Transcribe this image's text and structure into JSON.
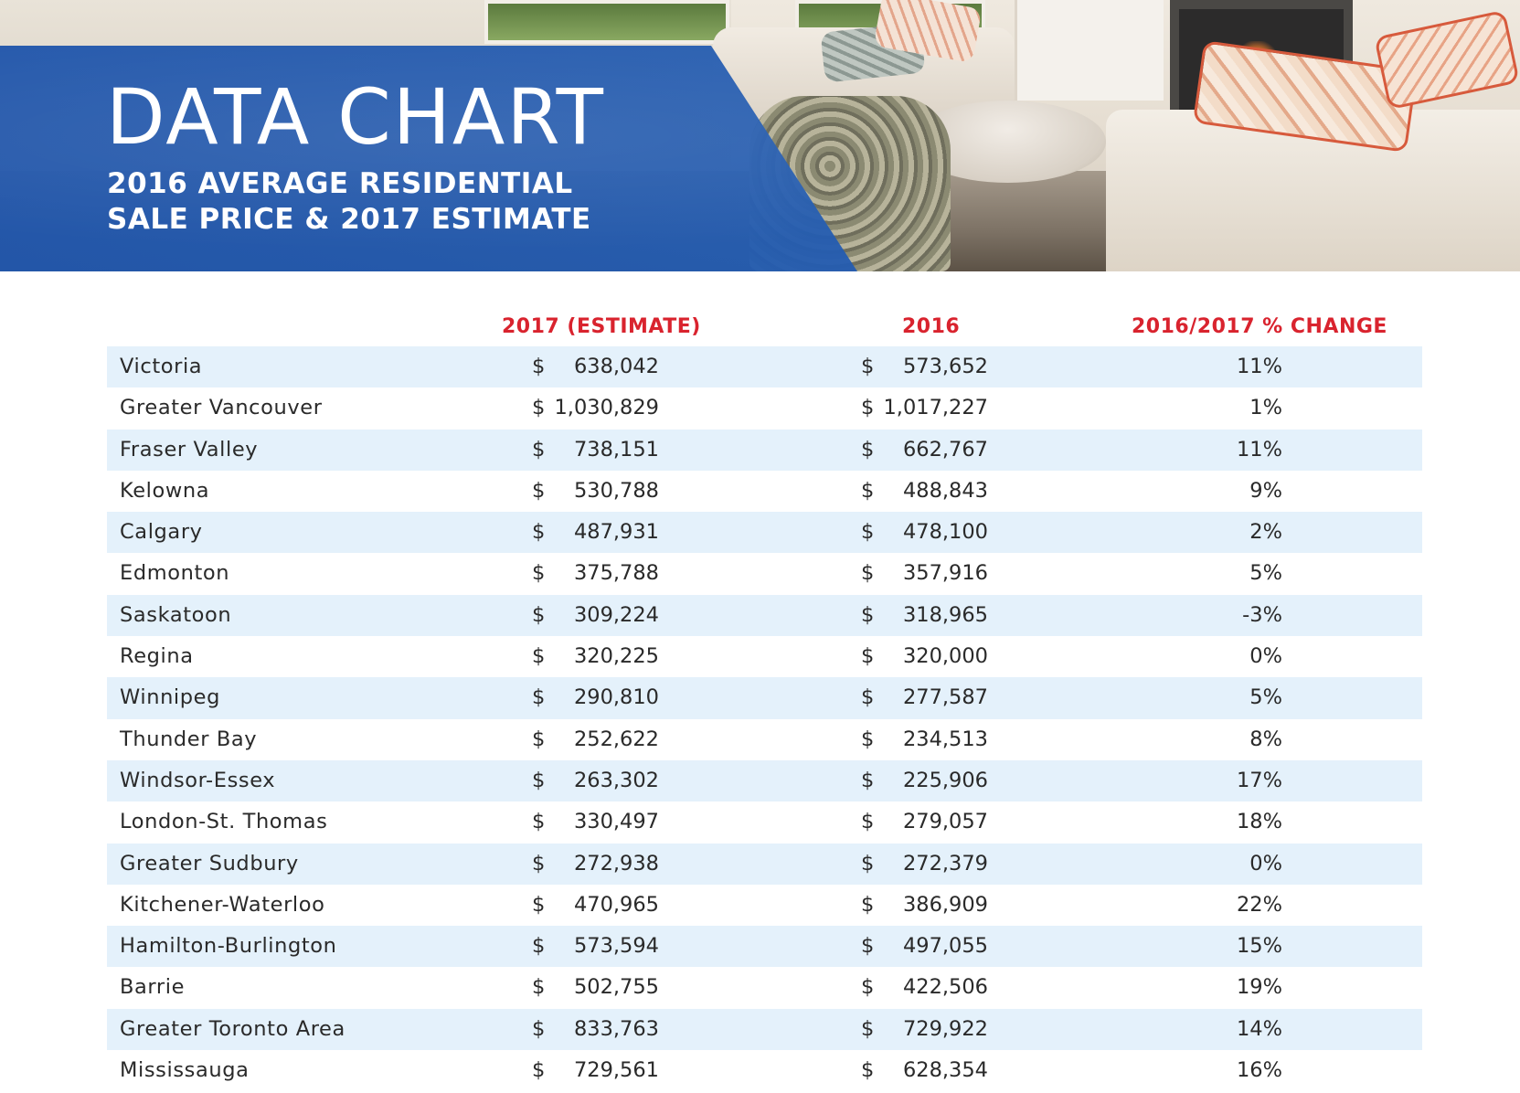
{
  "header": {
    "title": "DATA CHART",
    "subtitle_line1": "2016 AVERAGE RESIDENTIAL",
    "subtitle_line2": "SALE PRICE & 2017 ESTIMATE"
  },
  "colors": {
    "banner_blue": "#2156ab",
    "header_red": "#d9232e",
    "row_shade": "#e4f1fb"
  },
  "chart_data": {
    "type": "table",
    "title": "2016 AVERAGE RESIDENTIAL SALE PRICE & 2017 ESTIMATE",
    "columns": [
      "",
      "2017 (ESTIMATE)",
      "2016",
      "2016/2017 % CHANGE"
    ],
    "currency_symbol": "$",
    "rows": [
      {
        "city": "Victoria",
        "est2017": "638,042",
        "y2016": "573,652",
        "change": "11%"
      },
      {
        "city": "Greater Vancouver",
        "est2017": "1,030,829",
        "y2016": "1,017,227",
        "change": "1%"
      },
      {
        "city": "Fraser Valley",
        "est2017": "738,151",
        "y2016": "662,767",
        "change": "11%"
      },
      {
        "city": "Kelowna",
        "est2017": "530,788",
        "y2016": "488,843",
        "change": "9%"
      },
      {
        "city": "Calgary",
        "est2017": "487,931",
        "y2016": "478,100",
        "change": "2%"
      },
      {
        "city": "Edmonton",
        "est2017": "375,788",
        "y2016": "357,916",
        "change": "5%"
      },
      {
        "city": "Saskatoon",
        "est2017": "309,224",
        "y2016": "318,965",
        "change": "-3%"
      },
      {
        "city": "Regina",
        "est2017": "320,225",
        "y2016": "320,000",
        "change": "0%"
      },
      {
        "city": "Winnipeg",
        "est2017": "290,810",
        "y2016": "277,587",
        "change": "5%"
      },
      {
        "city": "Thunder Bay",
        "est2017": "252,622",
        "y2016": "234,513",
        "change": "8%"
      },
      {
        "city": "Windsor-Essex",
        "est2017": "263,302",
        "y2016": "225,906",
        "change": "17%"
      },
      {
        "city": "London-St. Thomas",
        "est2017": "330,497",
        "y2016": "279,057",
        "change": "18%"
      },
      {
        "city": "Greater Sudbury",
        "est2017": "272,938",
        "y2016": "272,379",
        "change": "0%"
      },
      {
        "city": "Kitchener-Waterloo",
        "est2017": "470,965",
        "y2016": "386,909",
        "change": "22%"
      },
      {
        "city": "Hamilton-Burlington",
        "est2017": "573,594",
        "y2016": "497,055",
        "change": "15%"
      },
      {
        "city": "Barrie",
        "est2017": "502,755",
        "y2016": "422,506",
        "change": "19%"
      },
      {
        "city": "Greater Toronto Area",
        "est2017": "833,763",
        "y2016": "729,922",
        "change": "14%"
      },
      {
        "city": "Mississauga",
        "est2017": "729,561",
        "y2016": "628,354",
        "change": "16%"
      }
    ]
  }
}
